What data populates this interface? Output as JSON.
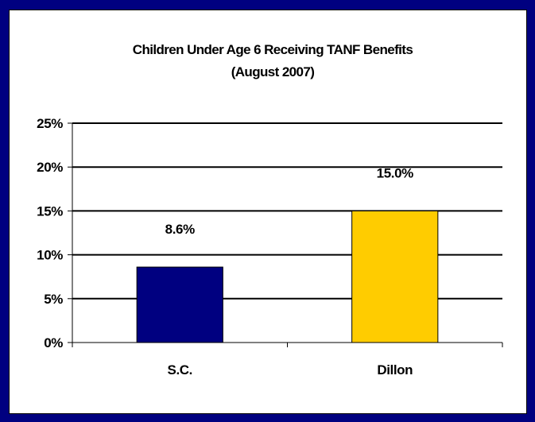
{
  "chart_data": {
    "type": "bar",
    "title": "Children Under Age 6 Receiving TANF Benefits",
    "subtitle": "(August 2007)",
    "categories": [
      "S.C.",
      "Dillon"
    ],
    "values": [
      8.6,
      15.0
    ],
    "data_labels": [
      "8.6%",
      "15.0%"
    ],
    "bar_colors": [
      "#000080",
      "#FFCC00"
    ],
    "ylim": [
      0,
      25
    ],
    "y_ticks": [
      0,
      5,
      10,
      15,
      20,
      25
    ],
    "y_tick_labels": [
      "0%",
      "5%",
      "10%",
      "15%",
      "20%",
      "25%"
    ],
    "grid": true,
    "legend": "none"
  },
  "colors": {
    "page_background": "#000080",
    "chart_background": "#FFFFFF",
    "gridline": "#000000"
  }
}
